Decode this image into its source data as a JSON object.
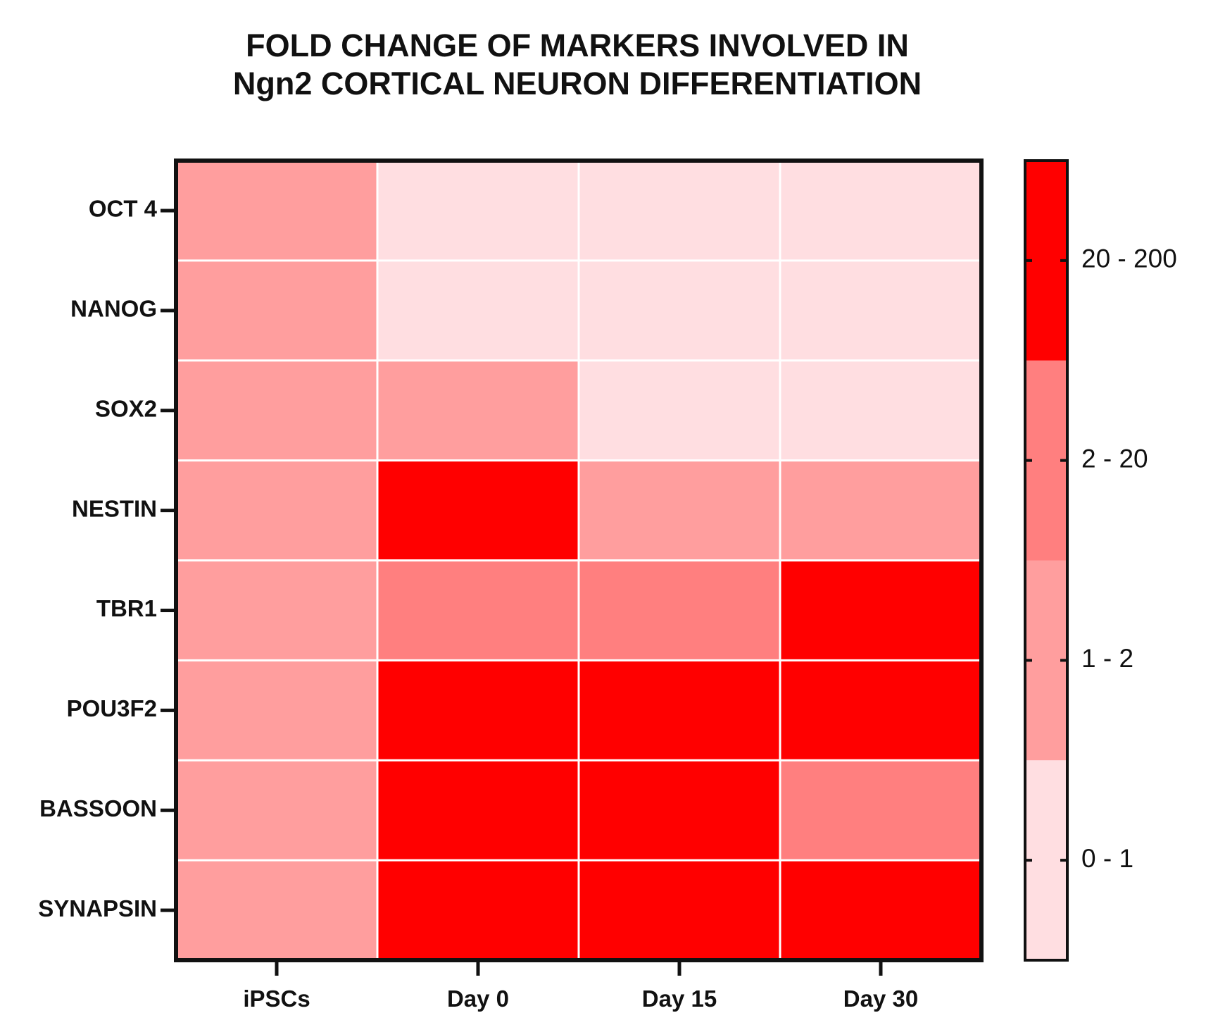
{
  "chart_data": {
    "type": "heatmap",
    "title_lines": [
      "FOLD CHANGE OF MARKERS INVOLVED IN",
      "Ngn2 CORTICAL NEURON DIFFERENTIATION"
    ],
    "xlabel": "",
    "ylabel": "",
    "x_categories": [
      "iPSCs",
      "Day 0",
      "Day 15",
      "Day 30"
    ],
    "y_categories": [
      "OCT 4",
      "NANOG",
      "SOX2",
      "NESTIN",
      "TBR1",
      "POU3F2",
      "BASSOON",
      "SYNAPSIN"
    ],
    "bins": [
      {
        "label": "0 - 1",
        "color": "#FFDEE1"
      },
      {
        "label": "1 - 2",
        "color": "#FF9E9E"
      },
      {
        "label": "2 - 20",
        "color": "#FF7F7F"
      },
      {
        "label": "20 - 200",
        "color": "#FF0000"
      }
    ],
    "values": [
      [
        "1 - 2",
        "0 - 1",
        "0 - 1",
        "0 - 1"
      ],
      [
        "1 - 2",
        "0 - 1",
        "0 - 1",
        "0 - 1"
      ],
      [
        "1 - 2",
        "1 - 2",
        "0 - 1",
        "0 - 1"
      ],
      [
        "1 - 2",
        "20 - 200",
        "1 - 2",
        "1 - 2"
      ],
      [
        "1 - 2",
        "2 - 20",
        "2 - 20",
        "20 - 200"
      ],
      [
        "1 - 2",
        "20 - 200",
        "20 - 200",
        "20 - 200"
      ],
      [
        "1 - 2",
        "20 - 200",
        "20 - 200",
        "2 - 20"
      ],
      [
        "1 - 2",
        "20 - 200",
        "20 - 200",
        "20 - 200"
      ]
    ],
    "legend_position": "right",
    "grid": true
  }
}
